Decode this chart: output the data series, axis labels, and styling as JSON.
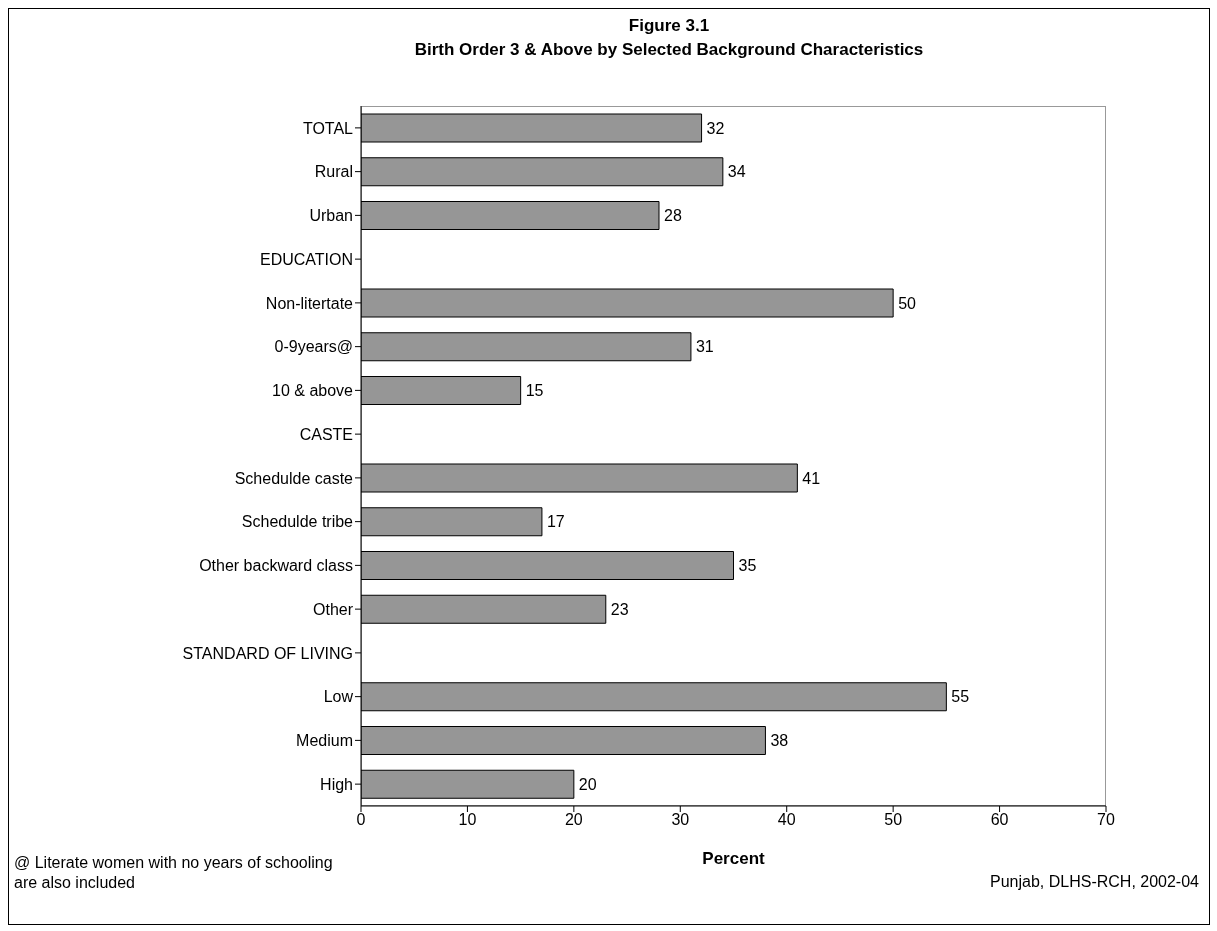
{
  "chart_data": {
    "type": "bar",
    "orientation": "horizontal",
    "title": "Figure 3.1",
    "subtitle": "Birth Order 3 & Above by Selected Background Characteristics",
    "categories": [
      "TOTAL",
      "Rural",
      "Urban",
      "EDUCATION",
      "Non-litertate",
      "0-9years@",
      "10 & above",
      "CASTE",
      "Schedulde caste",
      "Schedulde tribe",
      "Other backward class",
      "Other",
      "STANDARD OF LIVING",
      "Low",
      "Medium",
      "High"
    ],
    "values": [
      32,
      34,
      28,
      null,
      50,
      31,
      15,
      null,
      41,
      17,
      35,
      23,
      null,
      55,
      38,
      20
    ],
    "color": "#969696",
    "xlim": [
      0,
      70
    ],
    "xticks": [
      0,
      10,
      20,
      30,
      40,
      50,
      60,
      70
    ],
    "xlabel": "Percent",
    "grid": false,
    "data_labels": true,
    "annotations": [
      "@ Literate women with no years of schooling are also included",
      "Punjab, DLHS-RCH, 2002-04"
    ]
  }
}
